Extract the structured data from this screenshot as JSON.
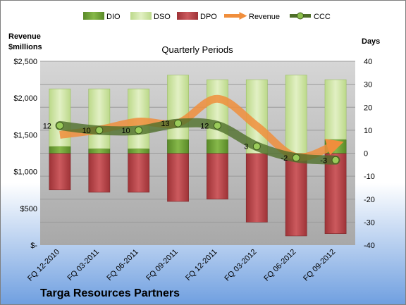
{
  "chart_data": {
    "type": "bar",
    "title": "Quarterly Periods",
    "company": "Targa Resources Partners",
    "left_axis_label": [
      "Revenue",
      "$millions"
    ],
    "right_axis_label": "Days",
    "left_ticks": [
      "$2,500",
      "$2,000",
      "$1,500",
      "$1,000",
      "$500",
      "$-"
    ],
    "right_ticks": [
      "40",
      "30",
      "20",
      "10",
      "0",
      "-10",
      "-20",
      "-30",
      "-40"
    ],
    "left_range": [
      0,
      2500
    ],
    "right_range": [
      -40,
      40
    ],
    "categories": [
      "FQ 12-2010",
      "FQ 03-2011",
      "FQ 06-2011",
      "FQ 09-2011",
      "FQ 12-2011",
      "FQ 03-2012",
      "FQ 06-2012",
      "FQ 09-2012"
    ],
    "legend": [
      "DIO",
      "DSO",
      "DPO",
      "Revenue",
      "CCC"
    ],
    "series": [
      {
        "name": "DIO",
        "axis": "days",
        "values": [
          3,
          2,
          2,
          6,
          6,
          0,
          0,
          6
        ]
      },
      {
        "name": "DSO",
        "axis": "days",
        "values": [
          25,
          26,
          26,
          28,
          26,
          32,
          34,
          26
        ]
      },
      {
        "name": "DPO",
        "axis": "days",
        "values": [
          -16,
          -17,
          -17,
          -21,
          -20,
          -30,
          -36,
          -35
        ]
      },
      {
        "name": "Revenue",
        "axis": "revenue",
        "values": [
          1500,
          1570,
          1680,
          1660,
          1990,
          1620,
          1200,
          1370
        ]
      },
      {
        "name": "CCC",
        "axis": "days",
        "values": [
          12,
          10,
          10,
          13,
          12,
          3,
          -2,
          -3
        ]
      }
    ],
    "ccc_labels": [
      "12",
      "10",
      "10",
      "13",
      "12",
      "3",
      "-2",
      "-3"
    ],
    "colors": {
      "DIO": "#6b9a32",
      "DSO": "#cfe5a2",
      "DPO": "#b8464a",
      "Revenue": "#f08e3c",
      "CCC": "#4f6f2a",
      "plot_background": "#bcbcbc",
      "page_top": "#ffffff",
      "page_bottom": "#6f9fe0"
    },
    "grid": true,
    "legend_position": "top"
  }
}
